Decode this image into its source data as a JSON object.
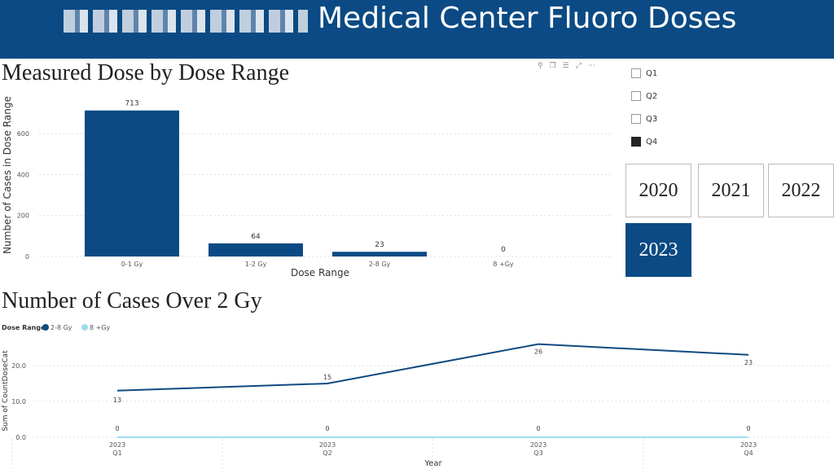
{
  "header": {
    "title": "Medical Center Fluoro Doses",
    "title_redacted": true
  },
  "visual_tools": [
    "pin-icon",
    "copy-icon",
    "filter-icon",
    "focus-icon",
    "more-icon"
  ],
  "quarter_slicer": [
    {
      "label": "Q1",
      "checked": false
    },
    {
      "label": "Q2",
      "checked": false
    },
    {
      "label": "Q3",
      "checked": false
    },
    {
      "label": "Q4",
      "checked": true
    }
  ],
  "year_slicer": [
    {
      "label": "2020",
      "selected": false
    },
    {
      "label": "2021",
      "selected": false
    },
    {
      "label": "2022",
      "selected": false
    },
    {
      "label": "2023",
      "selected": true
    }
  ],
  "colors": {
    "banner": "#0b4a84",
    "bar": "#0b4a84",
    "series1": "#0f4a80",
    "series2": "#9fdcf0"
  },
  "chart_data": [
    {
      "type": "bar",
      "title": "Measured Dose by Dose Range",
      "xlabel": "Dose Range",
      "ylabel": "Number of Cases in Dose Range",
      "categories": [
        "0-1 Gy",
        "1-2 Gy",
        "2-8 Gy",
        "8 +Gy"
      ],
      "values": [
        713,
        64,
        23,
        0
      ],
      "ylim": [
        0,
        713
      ],
      "yticks": [
        0,
        200,
        400,
        600
      ],
      "grid": true
    },
    {
      "type": "line",
      "title": "Number of Cases Over 2 Gy",
      "xlabel": "Year",
      "ylabel": "Sum of CountDoseCat",
      "legend_title": "Dose Range",
      "legend_position": "top-left",
      "categories": [
        [
          "2023",
          "Q1"
        ],
        [
          "2023",
          "Q2"
        ],
        [
          "2023",
          "Q3"
        ],
        [
          "2023",
          "Q4"
        ]
      ],
      "series": [
        {
          "name": "2-8 Gy",
          "values": [
            13,
            15,
            26,
            23
          ]
        },
        {
          "name": "8 +Gy",
          "values": [
            0,
            0,
            0,
            0
          ]
        }
      ],
      "yticks": [
        "0.0",
        "10.0",
        "20.0"
      ],
      "grid": true
    }
  ]
}
